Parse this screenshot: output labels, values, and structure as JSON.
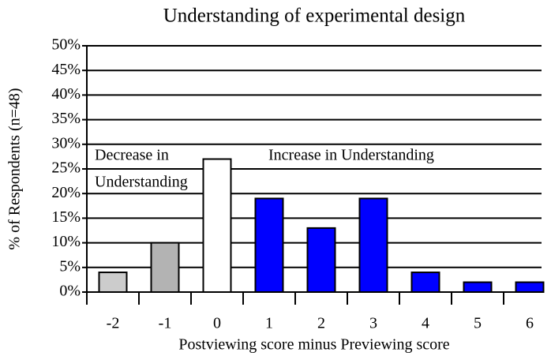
{
  "chart_data": {
    "type": "bar",
    "title": "Understanding of experimental design",
    "x_label": "Postviewing score minus Previewing score",
    "y_label": "% of Respondents (n=48)",
    "categories": [
      "-2",
      "-1",
      "0",
      "1",
      "2",
      "3",
      "4",
      "5",
      "6"
    ],
    "values": [
      4,
      10,
      27,
      19,
      13,
      19,
      4,
      2,
      2
    ],
    "colors": [
      "#cccccc",
      "#b3b3b3",
      "#ffffff",
      "#0000ff",
      "#0000ff",
      "#0000ff",
      "#0000ff",
      "#0000ff",
      "#0000ff"
    ],
    "ylim": [
      0,
      50
    ],
    "yticks": [
      {
        "value": 0,
        "label": "0%"
      },
      {
        "value": 5,
        "label": "5%"
      },
      {
        "value": 10,
        "label": "10%"
      },
      {
        "value": 15,
        "label": "15%"
      },
      {
        "value": 20,
        "label": "20%"
      },
      {
        "value": 25,
        "label": "25%"
      },
      {
        "value": 30,
        "label": "30%"
      },
      {
        "value": 35,
        "label": "35%"
      },
      {
        "value": 40,
        "label": "40%"
      },
      {
        "value": 45,
        "label": "45%"
      },
      {
        "value": 50,
        "label": "50%"
      }
    ],
    "grid": true,
    "annotations": [
      "Decrease in",
      "Understanding",
      "Increase in Understanding"
    ]
  }
}
